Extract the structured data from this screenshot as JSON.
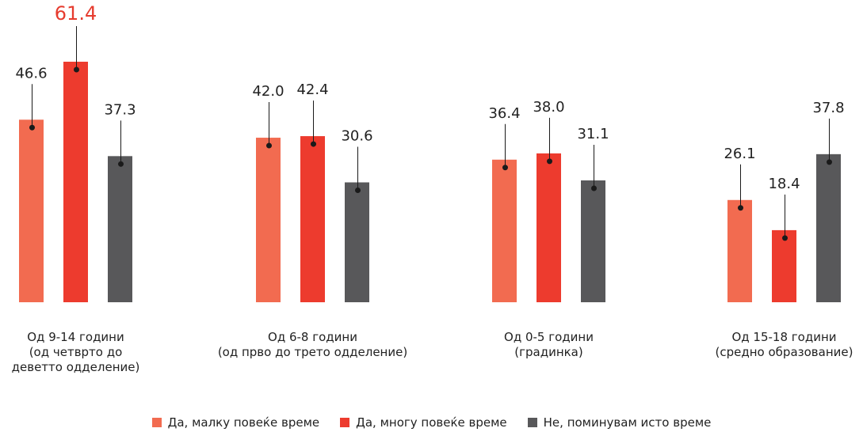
{
  "chart_data": {
    "type": "bar",
    "categories": [
      [
        "Од 9-14 години",
        "(од четврто до",
        "деветто одделение)"
      ],
      [
        "Од 6-8 години",
        "(од прво до трето одделение)"
      ],
      [
        "Од 0-5 години",
        "(градинка)"
      ],
      [
        "Од 15-18 години",
        "(средно образование)"
      ]
    ],
    "series": [
      {
        "name": "Да, малку повеќе време",
        "color": "#f26b50",
        "values": [
          46.6,
          42.0,
          36.4,
          26.1
        ]
      },
      {
        "name": "Да, многу повеќе време",
        "color": "#ed3b2e",
        "values": [
          61.4,
          42.4,
          38.0,
          18.4
        ]
      },
      {
        "name": "Не, поминувам исто време",
        "color": "#58585a",
        "values": [
          37.3,
          30.6,
          31.1,
          37.8
        ]
      }
    ],
    "value_labels": [
      [
        "46.6",
        "42.0",
        "36.4",
        "26.1"
      ],
      [
        "61.4",
        "42.4",
        "38.0",
        "18.4"
      ],
      [
        "37.3",
        "30.6",
        "31.1",
        "37.8"
      ]
    ],
    "highlight": {
      "series": 1,
      "category": 0,
      "color": "#e63b2e"
    },
    "ylim": [
      0,
      61.4
    ],
    "grid": false,
    "legend_position": "bottom"
  }
}
